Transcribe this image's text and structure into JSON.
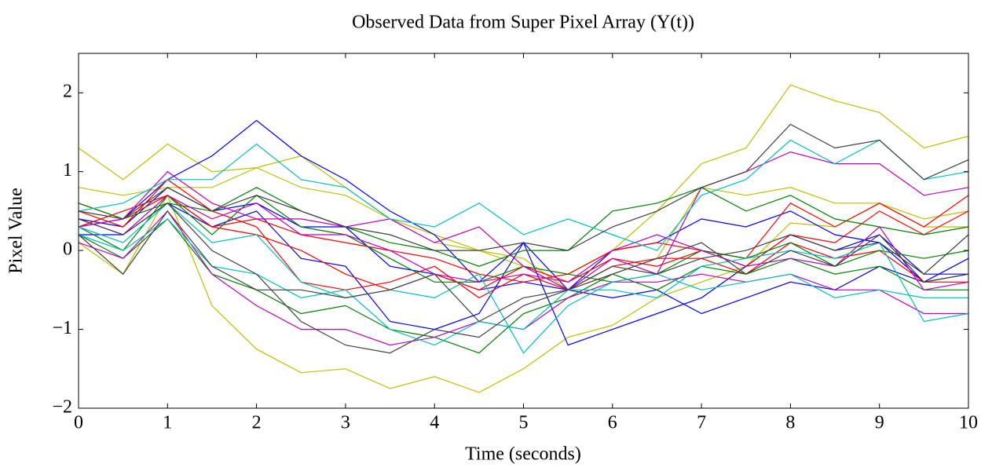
{
  "chart_data": {
    "type": "line",
    "title": "Observed Data from Super Pixel Array (Y(t))",
    "xlabel": "Time (seconds)",
    "ylabel": "Pixel Value",
    "xlim": [
      0,
      10
    ],
    "ylim": [
      -2,
      2.5
    ],
    "xticks": [
      0,
      1,
      2,
      3,
      4,
      5,
      6,
      7,
      8,
      9,
      10
    ],
    "yticks": [
      {
        "value": -2,
        "label": "−2"
      },
      {
        "value": -1,
        "label": "−1"
      },
      0,
      1,
      2
    ],
    "x": [
      0,
      0.5,
      1,
      1.5,
      2,
      2.5,
      3,
      3.5,
      4,
      4.5,
      5,
      5.5,
      6,
      6.5,
      7,
      7.5,
      8,
      8.5,
      9,
      9.5,
      10
    ],
    "series": [
      {
        "color": "#bfbf00",
        "values": [
          1.3,
          0.9,
          1.35,
          1.0,
          1.05,
          1.2,
          0.8,
          0.4,
          0.2,
          0.0,
          -0.2,
          -0.3,
          0.0,
          0.5,
          1.1,
          1.3,
          2.1,
          1.9,
          1.75,
          1.3,
          1.45
        ]
      },
      {
        "color": "#bfbf00",
        "values": [
          0.1,
          -0.3,
          0.7,
          -0.7,
          -1.25,
          -1.55,
          -1.5,
          -1.75,
          -1.6,
          -1.8,
          -1.5,
          -1.1,
          -0.95,
          -0.6,
          -0.4,
          -0.2,
          0.35,
          0.3,
          0.6,
          0.3,
          0.3
        ]
      },
      {
        "color": "#bfbf00",
        "values": [
          0.8,
          0.7,
          0.8,
          0.8,
          1.05,
          0.8,
          0.7,
          0.4,
          0.1,
          0.0,
          -0.1,
          -0.5,
          -0.3,
          -0.1,
          0.8,
          0.7,
          0.8,
          0.6,
          0.6,
          0.4,
          0.5
        ]
      },
      {
        "color": "#0000ff",
        "values": [
          0.3,
          0.4,
          0.9,
          1.2,
          1.65,
          1.2,
          0.9,
          0.5,
          0.2,
          -0.4,
          0.1,
          -0.5,
          -0.6,
          -0.5,
          -0.8,
          -0.6,
          -0.4,
          -0.5,
          -0.2,
          -0.4,
          -0.1
        ]
      },
      {
        "color": "#0000ff",
        "values": [
          0.4,
          0.3,
          0.8,
          0.5,
          0.6,
          0.3,
          0.3,
          -0.2,
          -0.3,
          -0.5,
          -0.4,
          -0.5,
          0.0,
          0.1,
          0.4,
          0.3,
          0.5,
          0.2,
          0.1,
          -0.4,
          -0.3
        ]
      },
      {
        "color": "#0000ff",
        "values": [
          0.2,
          0.2,
          0.6,
          0.3,
          0.5,
          -0.1,
          -0.2,
          -0.9,
          -1.0,
          -0.8,
          0.1,
          -1.2,
          -1.0,
          -0.8,
          -0.6,
          -0.2,
          0.2,
          0.0,
          0.2,
          -0.3,
          -0.3
        ]
      },
      {
        "color": "#ff0000",
        "values": [
          0.6,
          0.4,
          0.7,
          0.3,
          0.4,
          0.2,
          0.1,
          0.0,
          -0.1,
          -0.3,
          -0.4,
          -0.3,
          0.0,
          0.1,
          0.0,
          -0.1,
          0.6,
          0.3,
          0.6,
          0.3,
          0.7
        ]
      },
      {
        "color": "#ff0000",
        "values": [
          0.3,
          0.5,
          0.7,
          0.3,
          0.2,
          0.0,
          -0.3,
          -0.5,
          -0.3,
          -0.5,
          -0.2,
          -0.4,
          -0.1,
          -0.2,
          0.0,
          -0.2,
          0.2,
          0.1,
          0.5,
          0.2,
          0.5
        ]
      },
      {
        "color": "#ff0000",
        "values": [
          0.5,
          0.3,
          0.9,
          0.5,
          0.3,
          -0.4,
          -0.5,
          -0.4,
          -0.2,
          -0.6,
          -0.3,
          -0.5,
          -0.2,
          -0.1,
          -0.1,
          -0.3,
          0.1,
          -0.1,
          0.0,
          -0.4,
          -0.4
        ]
      },
      {
        "color": "#008000",
        "values": [
          0.6,
          0.4,
          0.6,
          0.5,
          0.8,
          0.5,
          0.3,
          0.1,
          0.0,
          -0.2,
          0.0,
          0.0,
          0.5,
          0.6,
          0.8,
          0.5,
          0.7,
          0.4,
          0.3,
          0.2,
          0.3
        ]
      },
      {
        "color": "#008000",
        "values": [
          0.3,
          0.0,
          0.7,
          0.2,
          0.7,
          0.3,
          0.2,
          -0.1,
          -0.4,
          -0.4,
          -0.2,
          -0.3,
          -0.4,
          -0.3,
          0.0,
          -0.1,
          0.1,
          -0.2,
          0.0,
          -0.1,
          0.0
        ]
      },
      {
        "color": "#008000",
        "values": [
          0.2,
          -0.1,
          0.4,
          -0.3,
          -0.5,
          -0.8,
          -0.7,
          -1.0,
          -1.1,
          -1.3,
          -0.8,
          -0.6,
          -0.3,
          -0.5,
          -0.2,
          -0.3,
          -0.1,
          -0.3,
          -0.2,
          -0.5,
          -0.5
        ]
      },
      {
        "color": "#bf00bf",
        "values": [
          0.3,
          0.4,
          1.0,
          0.6,
          0.4,
          0.4,
          0.3,
          0.4,
          0.1,
          0.3,
          -0.2,
          -0.5,
          -0.1,
          -0.3,
          0.8,
          1.0,
          1.25,
          1.1,
          1.1,
          0.7,
          0.8
        ]
      },
      {
        "color": "#bf00bf",
        "values": [
          0.4,
          0.2,
          0.7,
          0.4,
          0.6,
          0.2,
          0.2,
          0.0,
          -0.3,
          -0.4,
          -0.3,
          -0.4,
          0.0,
          0.2,
          0.0,
          -0.2,
          -0.1,
          -0.2,
          0.3,
          -0.5,
          -0.4
        ]
      },
      {
        "color": "#bf00bf",
        "values": [
          0.1,
          -0.1,
          0.5,
          -0.3,
          -0.7,
          -1.0,
          -1.0,
          -1.2,
          -1.1,
          -0.9,
          -1.0,
          -0.6,
          -0.4,
          -0.4,
          -0.3,
          -0.4,
          -0.3,
          -0.5,
          -0.5,
          -0.8,
          -0.8
        ]
      },
      {
        "color": "#00bfbf",
        "values": [
          0.5,
          0.6,
          0.9,
          0.9,
          1.35,
          0.9,
          0.8,
          0.4,
          0.3,
          0.6,
          0.2,
          0.4,
          0.2,
          0.0,
          0.7,
          0.9,
          1.4,
          1.1,
          1.4,
          0.9,
          1.0
        ]
      },
      {
        "color": "#00bfbf",
        "values": [
          0.3,
          0.1,
          0.6,
          0.1,
          0.2,
          -0.4,
          -0.6,
          -0.5,
          -0.6,
          -0.3,
          -1.3,
          -0.7,
          -0.4,
          -0.3,
          -0.5,
          -0.4,
          -0.3,
          -0.6,
          -0.5,
          -0.6,
          -0.6
        ]
      },
      {
        "color": "#00bfbf",
        "values": [
          0.2,
          0.0,
          0.4,
          -0.2,
          -0.3,
          -0.6,
          -0.5,
          -1.0,
          -1.2,
          -0.9,
          -1.0,
          -0.5,
          -0.5,
          -0.6,
          -0.2,
          -0.1,
          0.0,
          -0.1,
          0.1,
          -0.9,
          -0.8
        ]
      },
      {
        "color": "#404040",
        "values": [
          0.5,
          0.4,
          0.8,
          0.5,
          0.7,
          0.5,
          0.3,
          0.2,
          0.0,
          0.0,
          0.1,
          0.0,
          0.3,
          0.5,
          0.8,
          1.0,
          1.6,
          1.3,
          1.4,
          0.9,
          1.15
        ]
      },
      {
        "color": "#404040",
        "values": [
          0.2,
          -0.3,
          0.5,
          -0.2,
          -0.5,
          -0.5,
          -0.6,
          -0.5,
          -0.3,
          -0.9,
          -0.6,
          -0.5,
          -0.2,
          -0.3,
          -0.1,
          0.0,
          0.2,
          0.0,
          0.1,
          -0.3,
          0.2
        ]
      },
      {
        "color": "#404040",
        "values": [
          0.4,
          0.2,
          0.6,
          0.0,
          -0.3,
          -0.9,
          -1.2,
          -1.3,
          -1.0,
          -1.1,
          -0.7,
          -0.5,
          -0.3,
          -0.1,
          0.1,
          -0.3,
          0.0,
          -0.2,
          0.2,
          -0.4,
          -0.3
        ]
      }
    ]
  }
}
